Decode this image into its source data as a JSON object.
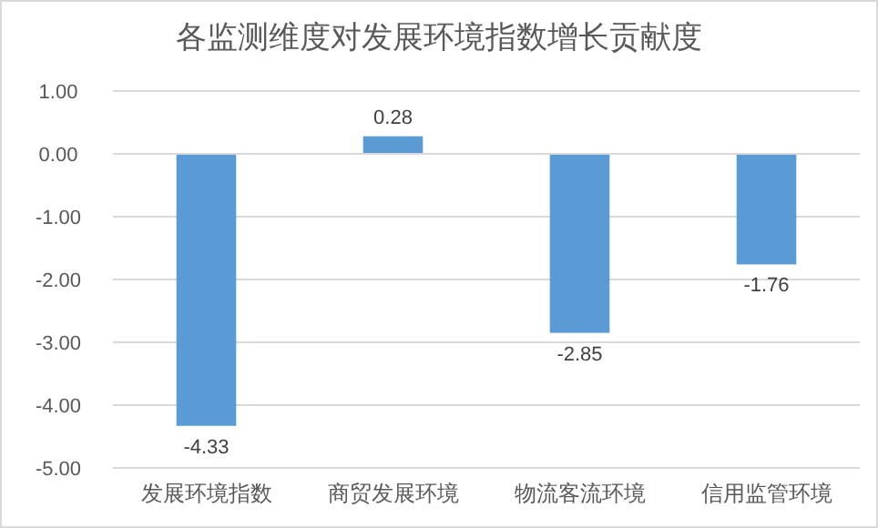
{
  "chart_data": {
    "type": "bar",
    "title": "各监测维度对发展环境指数增长贡献度",
    "categories": [
      "发展环境指数",
      "商贸发展环境",
      "物流客流环境",
      "信用监管环境"
    ],
    "values": [
      -4.33,
      0.28,
      -2.85,
      -1.76
    ],
    "color": "#5b9bd5",
    "ylim": [
      -5,
      1
    ],
    "yticks": [
      {
        "value": 1,
        "label": "1.00"
      },
      {
        "value": 0,
        "label": "0.00"
      },
      {
        "value": -1,
        "label": "-1.00"
      },
      {
        "value": -2,
        "label": "-2.00"
      },
      {
        "value": -3,
        "label": "-3.00"
      },
      {
        "value": -4,
        "label": "-4.00"
      },
      {
        "value": -5,
        "label": "-5.00"
      }
    ],
    "grid": "y",
    "data_labels": true
  }
}
